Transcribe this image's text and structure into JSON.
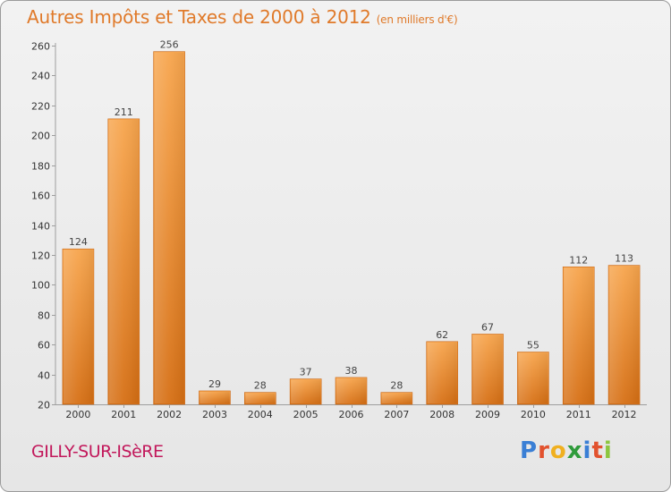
{
  "title": "Autres Impôts et Taxes de 2000 à 2012",
  "subtitle": "(en milliers d'€)",
  "place": "GILLY-SUR-ISèRE",
  "logo": {
    "text": "Proxiti",
    "letters": [
      "P",
      "r",
      "o",
      "x",
      "i",
      "t",
      "i"
    ]
  },
  "colors": {
    "bar": "#e88a2e",
    "title": "#e07a2a",
    "place": "#c2185b"
  },
  "chart_data": {
    "type": "bar",
    "title": "Autres Impôts et Taxes de 2000 à 2012",
    "subtitle": "(en milliers d'€)",
    "xlabel": "",
    "ylabel": "",
    "categories": [
      "2000",
      "2001",
      "2002",
      "2003",
      "2004",
      "2005",
      "2006",
      "2007",
      "2008",
      "2009",
      "2010",
      "2011",
      "2012"
    ],
    "values": [
      124,
      211,
      256,
      29,
      28,
      37,
      38,
      28,
      62,
      67,
      55,
      112,
      113
    ],
    "ylim": [
      20,
      260
    ],
    "yticks": [
      20,
      40,
      60,
      80,
      100,
      120,
      140,
      160,
      180,
      200,
      220,
      240,
      260
    ],
    "grid": false,
    "data_labels": true
  }
}
